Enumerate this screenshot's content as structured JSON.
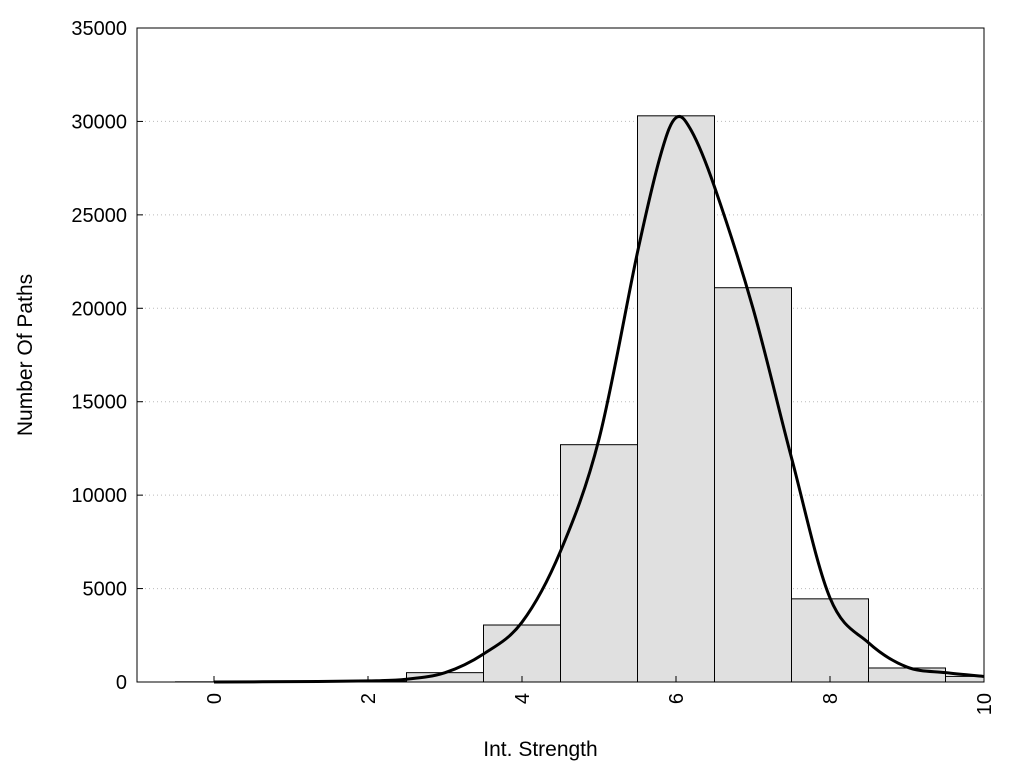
{
  "chart_data": {
    "type": "bar",
    "title": "",
    "xlabel": "Int. Strength",
    "ylabel": "Number Of Paths",
    "xlim": [
      -1,
      10
    ],
    "ylim": [
      0,
      35000
    ],
    "x_ticks": [
      0,
      2,
      4,
      6,
      8,
      10
    ],
    "y_ticks": [
      0,
      5000,
      10000,
      15000,
      20000,
      25000,
      30000,
      35000
    ],
    "grid": "horizontal dotted",
    "legend": "none",
    "colors": {
      "bar_fill": "#e0e0e0",
      "bar_stroke": "#000000",
      "curve": "#000000",
      "grid": "#bbbbbb"
    },
    "series": [
      {
        "type": "bar",
        "bins": [
          {
            "x": 0,
            "value": 10
          },
          {
            "x": 1,
            "value": 20
          },
          {
            "x": 2,
            "value": 40
          },
          {
            "x": 3,
            "value": 500
          },
          {
            "x": 4,
            "value": 3050
          },
          {
            "x": 5,
            "value": 12700
          },
          {
            "x": 6,
            "value": 30300
          },
          {
            "x": 7,
            "value": 21100
          },
          {
            "x": 8,
            "value": 4450
          },
          {
            "x": 9,
            "value": 750
          },
          {
            "x": 10,
            "value": 300
          }
        ]
      },
      {
        "type": "line",
        "x": [
          0,
          1,
          2,
          2.5,
          3,
          3.5,
          4,
          4.5,
          5,
          5.5,
          5.8,
          6,
          6.2,
          6.5,
          7,
          7.5,
          8,
          8.5,
          9,
          9.5,
          10
        ],
        "y": [
          0,
          20,
          60,
          150,
          500,
          1500,
          3200,
          7000,
          13000,
          23000,
          28200,
          30200,
          29500,
          26500,
          20000,
          12000,
          4500,
          2100,
          800,
          500,
          300
        ]
      }
    ]
  }
}
